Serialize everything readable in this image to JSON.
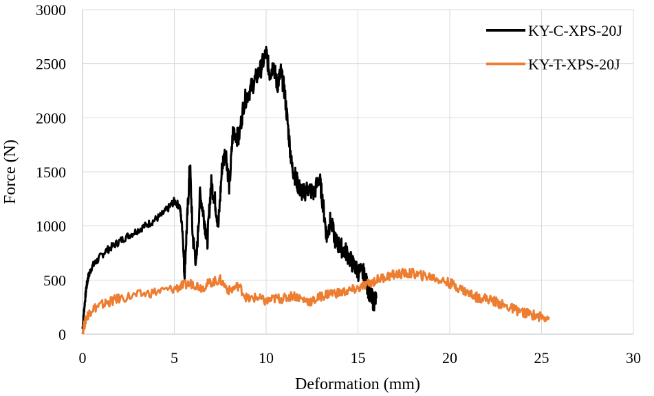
{
  "chart_data": {
    "type": "line",
    "xlabel": "Deformation (mm)",
    "ylabel": "Force (N)",
    "xlim": [
      0,
      30
    ],
    "ylim": [
      0,
      3000
    ],
    "xticks": [
      0,
      5,
      10,
      15,
      20,
      25,
      30
    ],
    "yticks": [
      0,
      500,
      1000,
      1500,
      2000,
      2500,
      3000
    ],
    "grid": true,
    "legend_position": "top-right",
    "series": [
      {
        "name": "KY-C-XPS-20J",
        "color": "#000000",
        "x": [
          0,
          0.1,
          0.2,
          0.3,
          0.5,
          0.8,
          1.2,
          1.7,
          2.2,
          2.8,
          3.3,
          3.8,
          4.3,
          4.7,
          5.0,
          5.3,
          5.45,
          5.55,
          5.7,
          5.85,
          6.0,
          6.2,
          6.4,
          6.6,
          6.8,
          7.0,
          7.2,
          7.4,
          7.6,
          7.8,
          8.0,
          8.2,
          8.5,
          8.8,
          9.1,
          9.4,
          9.7,
          10.0,
          10.2,
          10.4,
          10.6,
          10.8,
          11.0,
          11.2,
          11.4,
          11.6,
          11.8,
          12.0,
          12.3,
          12.6,
          12.9,
          13.1,
          13.3,
          13.5,
          13.8,
          14.1,
          14.4,
          14.7,
          15.0,
          15.3,
          15.5,
          15.7,
          15.85,
          16.0
        ],
        "y": [
          50,
          250,
          420,
          520,
          620,
          680,
          760,
          820,
          880,
          940,
          990,
          1040,
          1100,
          1170,
          1230,
          1180,
          950,
          560,
          1050,
          1580,
          900,
          650,
          1300,
          1100,
          850,
          1400,
          1250,
          1000,
          1550,
          1700,
          1350,
          1900,
          1800,
          2150,
          2250,
          2350,
          2450,
          2600,
          2400,
          2500,
          2300,
          2420,
          2250,
          1900,
          1550,
          1450,
          1350,
          1300,
          1350,
          1300,
          1450,
          1200,
          900,
          1050,
          850,
          800,
          750,
          650,
          580,
          560,
          450,
          350,
          300,
          330
        ]
      },
      {
        "name": "KY-T-XPS-20J",
        "color": "#ed7d31",
        "x": [
          0,
          0.2,
          0.5,
          1.0,
          1.5,
          2.0,
          3.0,
          4.0,
          5.0,
          5.5,
          6.0,
          6.5,
          7.0,
          7.5,
          8.0,
          8.5,
          9.0,
          9.5,
          10.0,
          10.5,
          11.0,
          11.5,
          12.0,
          12.5,
          13.0,
          13.5,
          14.0,
          14.5,
          15.0,
          15.5,
          16.0,
          16.5,
          17.0,
          17.5,
          18.0,
          18.5,
          19.0,
          19.5,
          20.0,
          20.5,
          21.0,
          21.5,
          22.0,
          22.5,
          23.0,
          23.5,
          24.0,
          24.5,
          25.0,
          25.4
        ],
        "y": [
          20,
          150,
          230,
          270,
          300,
          330,
          360,
          390,
          420,
          450,
          470,
          430,
          480,
          500,
          400,
          450,
          320,
          340,
          300,
          330,
          330,
          360,
          320,
          300,
          350,
          380,
          380,
          400,
          420,
          460,
          500,
          530,
          550,
          560,
          560,
          540,
          530,
          500,
          470,
          430,
          380,
          340,
          330,
          300,
          260,
          230,
          200,
          180,
          160,
          160
        ]
      }
    ]
  }
}
